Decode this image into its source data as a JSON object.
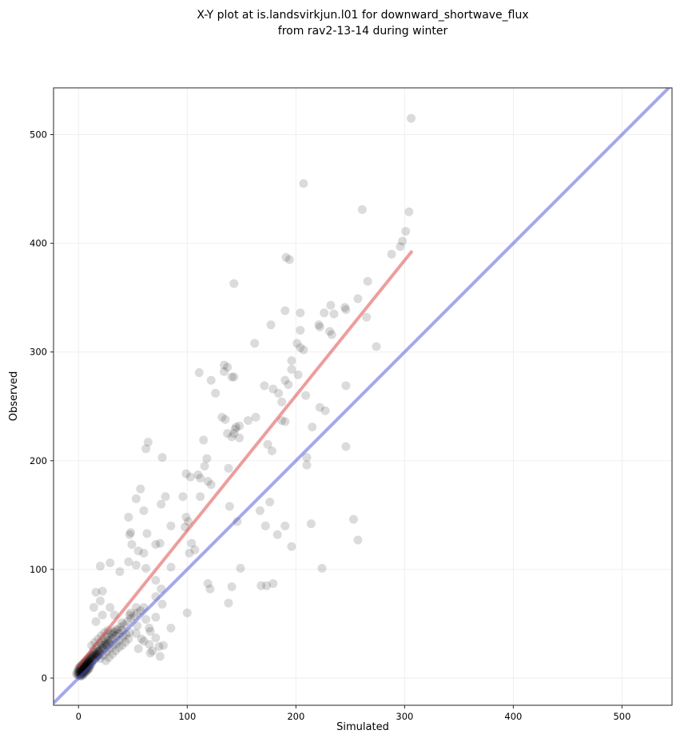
{
  "chart_data": {
    "type": "scatter",
    "title_line1": "X-Y plot at is.landsvirkjun.l01 for downward_shortwave_flux",
    "title_line2": "from rav2-13-14 during winter",
    "xlabel": "Simulated",
    "ylabel": "Observed",
    "xlim": [
      -23,
      546
    ],
    "ylim": [
      -25,
      543
    ],
    "x_ticks": [
      0,
      100,
      200,
      300,
      400,
      500
    ],
    "y_ticks": [
      0,
      100,
      200,
      300,
      400,
      500
    ],
    "grid": true,
    "legend": "none",
    "lines": [
      {
        "name": "one-to-one-line",
        "x": [
          -23,
          546
        ],
        "y": [
          -23,
          546
        ],
        "color": "rgba(80,80,220,0.5)",
        "width": 4
      },
      {
        "name": "regression-line",
        "x": [
          -1,
          307
        ],
        "y": [
          10,
          393
        ],
        "color": "rgba(220,60,60,0.5)",
        "width": 4
      }
    ],
    "style": {
      "point_color": "rgba(0,0,0,0.14)",
      "point_radius": 5.5,
      "grid_color": "#efefef",
      "spine_color": "#262626",
      "tick_color": "#262626",
      "tick_font_size": 11.5,
      "background": "#ffffff"
    },
    "points": [
      [
        306,
        515
      ],
      [
        207,
        455
      ],
      [
        261,
        431
      ],
      [
        304,
        429
      ],
      [
        301,
        411
      ],
      [
        298,
        402
      ],
      [
        296,
        397
      ],
      [
        288,
        390
      ],
      [
        191,
        387
      ],
      [
        194,
        385
      ],
      [
        266,
        365
      ],
      [
        143,
        363
      ],
      [
        257,
        349
      ],
      [
        232,
        343
      ],
      [
        246,
        339
      ],
      [
        226,
        336
      ],
      [
        235,
        335
      ],
      [
        190,
        338
      ],
      [
        204,
        336
      ],
      [
        245,
        341
      ],
      [
        265,
        332
      ],
      [
        222,
        323
      ],
      [
        231,
        319
      ],
      [
        233,
        316
      ],
      [
        177,
        325
      ],
      [
        204,
        320
      ],
      [
        221,
        325
      ],
      [
        162,
        308
      ],
      [
        201,
        308
      ],
      [
        204,
        304
      ],
      [
        274,
        305
      ],
      [
        207,
        302
      ],
      [
        196,
        292
      ],
      [
        196,
        284
      ],
      [
        202,
        279
      ],
      [
        134,
        288
      ],
      [
        143,
        277
      ],
      [
        134,
        282
      ],
      [
        171,
        269
      ],
      [
        179,
        266
      ],
      [
        190,
        274
      ],
      [
        193,
        270
      ],
      [
        184,
        262
      ],
      [
        187,
        254
      ],
      [
        209,
        260
      ],
      [
        246,
        269
      ],
      [
        111,
        281
      ],
      [
        122,
        274
      ],
      [
        126,
        262
      ],
      [
        137,
        286
      ],
      [
        141,
        277
      ],
      [
        222,
        249
      ],
      [
        227,
        246
      ],
      [
        187,
        237
      ],
      [
        190,
        236
      ],
      [
        163,
        240
      ],
      [
        156,
        237
      ],
      [
        145,
        231
      ],
      [
        148,
        221
      ],
      [
        143,
        225
      ],
      [
        215,
        231
      ],
      [
        246,
        213
      ],
      [
        174,
        215
      ],
      [
        178,
        209
      ],
      [
        210,
        203
      ],
      [
        132,
        240
      ],
      [
        135,
        238
      ],
      [
        137,
        225
      ],
      [
        144,
        229
      ],
      [
        148,
        232
      ],
      [
        141,
        222
      ],
      [
        115,
        219
      ],
      [
        64,
        217
      ],
      [
        62,
        211
      ],
      [
        77,
        203
      ],
      [
        118,
        202
      ],
      [
        116,
        195
      ],
      [
        110,
        187
      ],
      [
        112,
        184
      ],
      [
        138,
        193
      ],
      [
        210,
        196
      ],
      [
        99,
        188
      ],
      [
        103,
        185
      ],
      [
        119,
        181
      ],
      [
        122,
        178
      ],
      [
        57,
        174
      ],
      [
        80,
        167
      ],
      [
        96,
        167
      ],
      [
        112,
        167
      ],
      [
        76,
        160
      ],
      [
        60,
        154
      ],
      [
        53,
        165
      ],
      [
        46,
        148
      ],
      [
        139,
        158
      ],
      [
        146,
        144
      ],
      [
        48,
        134
      ],
      [
        63,
        133
      ],
      [
        85,
        140
      ],
      [
        99,
        148
      ],
      [
        101,
        144
      ],
      [
        98,
        139
      ],
      [
        176,
        162
      ],
      [
        167,
        154
      ],
      [
        172,
        140
      ],
      [
        190,
        140
      ],
      [
        183,
        132
      ],
      [
        196,
        121
      ],
      [
        214,
        142
      ],
      [
        253,
        146
      ],
      [
        257,
        127
      ],
      [
        104,
        124
      ],
      [
        71,
        123
      ],
      [
        55,
        117
      ],
      [
        107,
        118
      ],
      [
        102,
        115
      ],
      [
        46,
        107
      ],
      [
        53,
        104
      ],
      [
        62,
        101
      ],
      [
        85,
        102
      ],
      [
        47,
        132
      ],
      [
        49,
        123
      ],
      [
        60,
        115
      ],
      [
        29,
        106
      ],
      [
        38,
        98
      ],
      [
        149,
        101
      ],
      [
        224,
        101
      ],
      [
        75,
        124
      ],
      [
        20,
        103
      ],
      [
        141,
        84
      ],
      [
        168,
        85
      ],
      [
        173,
        85
      ],
      [
        179,
        87
      ],
      [
        119,
        87
      ],
      [
        121,
        82
      ],
      [
        138,
        69
      ],
      [
        22,
        80
      ],
      [
        16,
        79
      ],
      [
        20,
        71
      ],
      [
        14,
        65
      ],
      [
        22,
        58
      ],
      [
        16,
        52
      ],
      [
        29,
        65
      ],
      [
        33,
        58
      ],
      [
        40,
        51
      ],
      [
        47,
        58
      ],
      [
        53,
        65
      ],
      [
        47,
        42
      ],
      [
        54,
        48
      ],
      [
        62,
        54
      ],
      [
        66,
        43
      ],
      [
        58,
        36
      ],
      [
        65,
        31
      ],
      [
        71,
        37
      ],
      [
        74,
        29
      ],
      [
        66,
        23
      ],
      [
        75,
        20
      ],
      [
        71,
        90
      ],
      [
        76,
        82
      ],
      [
        71,
        75
      ],
      [
        77,
        68
      ],
      [
        48,
        60
      ],
      [
        71,
        56
      ],
      [
        65,
        46
      ],
      [
        53,
        41
      ],
      [
        60,
        34
      ],
      [
        55,
        27
      ],
      [
        68,
        25
      ],
      [
        100,
        60
      ],
      [
        85,
        46
      ],
      [
        78,
        30
      ],
      [
        12,
        30
      ],
      [
        15,
        33
      ],
      [
        18,
        36
      ],
      [
        21,
        39
      ],
      [
        24,
        42
      ],
      [
        27,
        44
      ],
      [
        14,
        26
      ],
      [
        17,
        29
      ],
      [
        20,
        32
      ],
      [
        23,
        35
      ],
      [
        26,
        38
      ],
      [
        29,
        41
      ],
      [
        32,
        43
      ],
      [
        35,
        45
      ],
      [
        16,
        22
      ],
      [
        19,
        25
      ],
      [
        22,
        28
      ],
      [
        25,
        31
      ],
      [
        28,
        34
      ],
      [
        31,
        37
      ],
      [
        34,
        39
      ],
      [
        37,
        41
      ],
      [
        40,
        44
      ],
      [
        20,
        18
      ],
      [
        23,
        21
      ],
      [
        26,
        24
      ],
      [
        29,
        27
      ],
      [
        32,
        30
      ],
      [
        35,
        32
      ],
      [
        38,
        35
      ],
      [
        41,
        38
      ],
      [
        44,
        40
      ],
      [
        25,
        16
      ],
      [
        28,
        19
      ],
      [
        31,
        22
      ],
      [
        34,
        25
      ],
      [
        37,
        28
      ],
      [
        40,
        30
      ],
      [
        43,
        33
      ],
      [
        46,
        36
      ],
      [
        -2,
        4
      ],
      [
        -1,
        3
      ],
      [
        0,
        5
      ],
      [
        0,
        7
      ],
      [
        1,
        4
      ],
      [
        1,
        8
      ],
      [
        2,
        5
      ],
      [
        2,
        9
      ],
      [
        3,
        6
      ],
      [
        3,
        10
      ],
      [
        4,
        7
      ],
      [
        4,
        11
      ],
      [
        5,
        8
      ],
      [
        5,
        12
      ],
      [
        6,
        9
      ],
      [
        6,
        13
      ],
      [
        7,
        10
      ],
      [
        7,
        14
      ],
      [
        8,
        11
      ],
      [
        8,
        15
      ],
      [
        9,
        12
      ],
      [
        9,
        16
      ],
      [
        10,
        13
      ],
      [
        10,
        17
      ],
      [
        11,
        14
      ],
      [
        11,
        18
      ],
      [
        12,
        15
      ],
      [
        12,
        19
      ],
      [
        13,
        16
      ],
      [
        13,
        20
      ],
      [
        0,
        9
      ],
      [
        1,
        10
      ],
      [
        2,
        11
      ],
      [
        3,
        12
      ],
      [
        4,
        13
      ],
      [
        5,
        14
      ],
      [
        6,
        15
      ],
      [
        7,
        16
      ],
      [
        8,
        17
      ],
      [
        9,
        18
      ],
      [
        10,
        19
      ],
      [
        11,
        20
      ],
      [
        12,
        21
      ],
      [
        13,
        22
      ],
      [
        -1,
        6
      ],
      [
        0,
        3
      ],
      [
        1,
        2
      ],
      [
        2,
        3
      ],
      [
        3,
        4
      ],
      [
        4,
        5
      ],
      [
        5,
        6
      ],
      [
        6,
        7
      ],
      [
        7,
        8
      ],
      [
        8,
        9
      ],
      [
        9,
        10
      ],
      [
        10,
        11
      ],
      [
        11,
        12
      ],
      [
        12,
        13
      ],
      [
        2,
        7
      ],
      [
        3,
        8
      ],
      [
        4,
        9
      ],
      [
        5,
        10
      ],
      [
        6,
        11
      ],
      [
        7,
        12
      ],
      [
        8,
        13
      ],
      [
        9,
        14
      ],
      [
        10,
        15
      ],
      [
        1,
        6
      ],
      [
        2,
        2
      ],
      [
        3,
        2
      ],
      [
        4,
        3
      ],
      [
        5,
        4
      ],
      [
        6,
        5
      ],
      [
        7,
        6
      ],
      [
        8,
        7
      ],
      [
        9,
        8
      ],
      [
        10,
        9
      ],
      [
        14,
        18
      ],
      [
        15,
        21
      ],
      [
        16,
        24
      ],
      [
        14,
        23
      ],
      [
        15,
        17
      ],
      [
        16,
        19
      ],
      [
        17,
        22
      ],
      [
        18,
        25
      ],
      [
        17,
        20
      ],
      [
        18,
        21
      ],
      [
        19,
        24
      ],
      [
        20,
        26
      ],
      [
        19,
        22
      ],
      [
        21,
        28
      ],
      [
        22,
        30
      ],
      [
        23,
        27
      ],
      [
        24,
        31
      ],
      [
        25,
        33
      ],
      [
        26,
        30
      ],
      [
        27,
        35
      ],
      [
        28,
        32
      ],
      [
        30,
        36
      ],
      [
        31,
        40
      ],
      [
        33,
        42
      ],
      [
        36,
        44
      ],
      [
        39,
        47
      ],
      [
        42,
        49
      ],
      [
        45,
        52
      ],
      [
        48,
        55
      ],
      [
        51,
        57
      ],
      [
        54,
        60
      ],
      [
        57,
        62
      ],
      [
        60,
        65
      ]
    ]
  }
}
